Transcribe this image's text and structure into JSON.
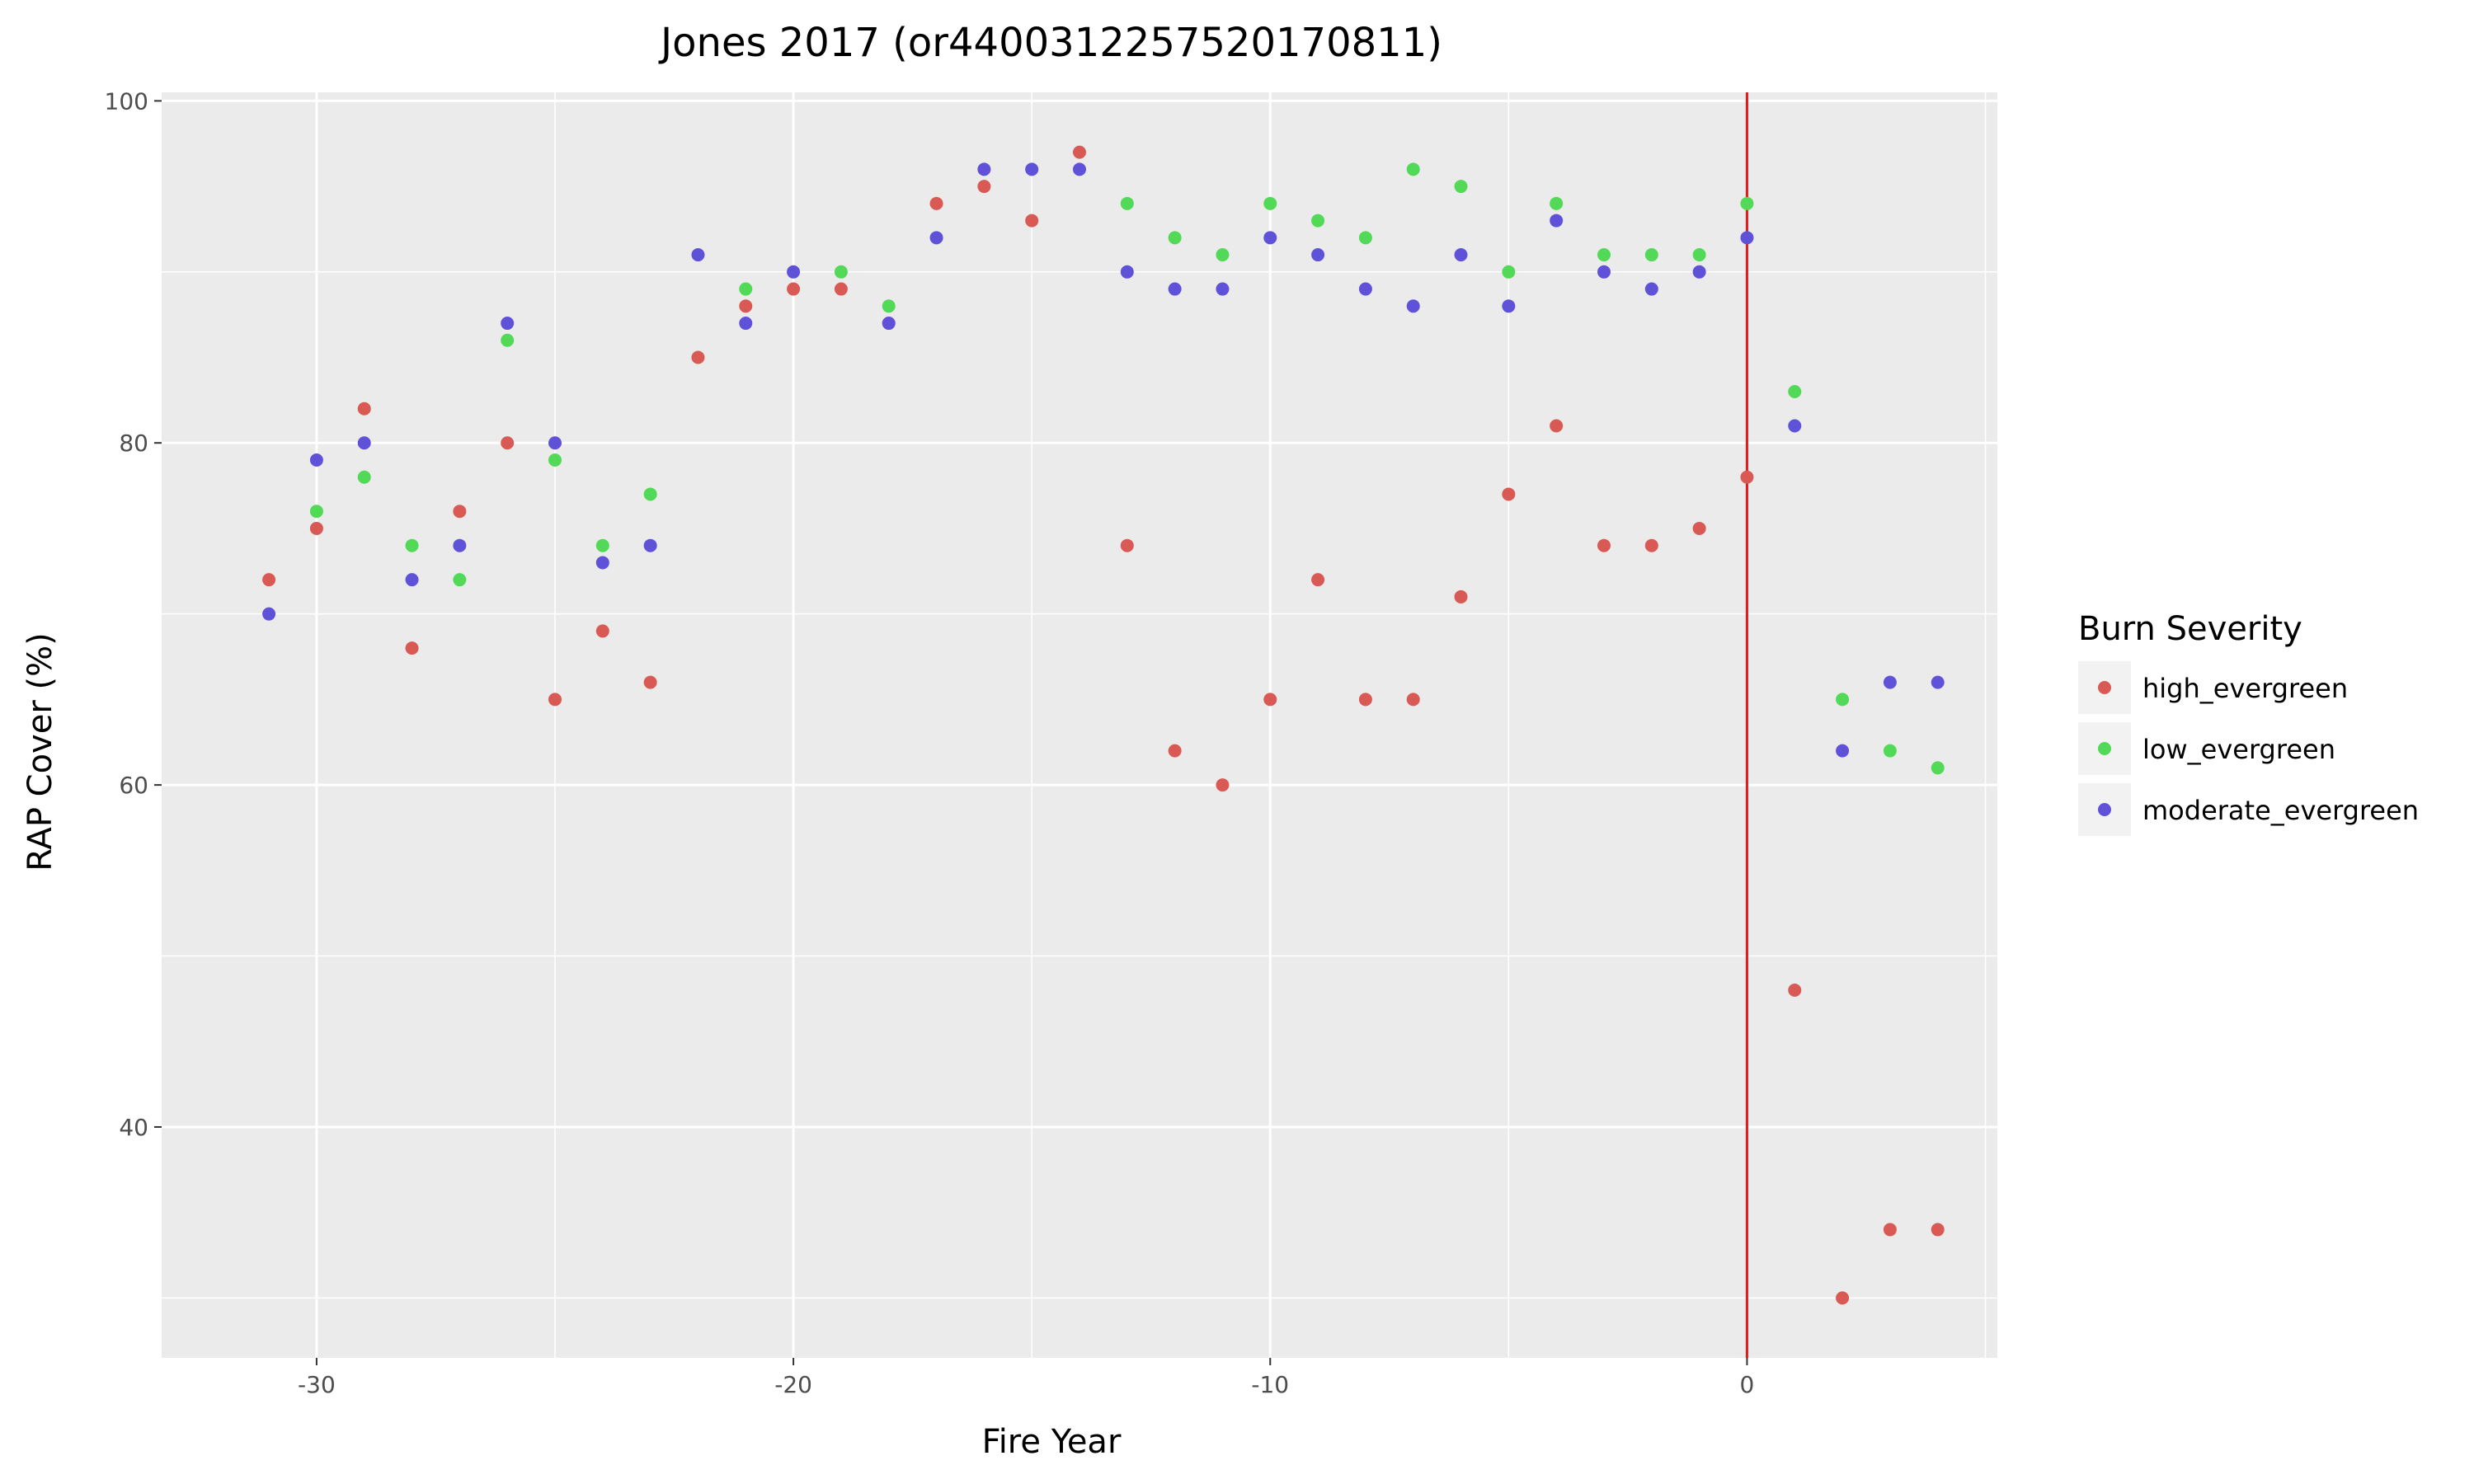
{
  "chart_data": {
    "type": "scatter",
    "title": "Jones 2017 (or4400312257520170811)",
    "xlabel": "Fire Year",
    "ylabel": "RAP Cover (%)",
    "xlim": [
      -33.25,
      5.25
    ],
    "ylim": [
      26.5,
      100.5
    ],
    "x_ticks": [
      -30,
      -20,
      -10,
      0
    ],
    "y_ticks": [
      40,
      60,
      80,
      100
    ],
    "grid": true,
    "reference_line": {
      "x": 0,
      "color": "#e41a1c"
    },
    "legend": {
      "title": "Burn Severity",
      "position": "right"
    },
    "series": [
      {
        "name": "high_evergreen",
        "color": "#d95a54",
        "x": [
          -31,
          -30,
          -29,
          -28,
          -27,
          -26,
          -25,
          -24,
          -23,
          -22,
          -21,
          -20,
          -19,
          -18,
          -17,
          -16,
          -15,
          -14,
          -13,
          -12,
          -11,
          -10,
          -9,
          -8,
          -7,
          -6,
          -5,
          -4,
          -3,
          -2,
          -1,
          0,
          1,
          2,
          3,
          4
        ],
        "y": [
          72,
          75,
          82,
          68,
          76,
          80,
          65,
          69,
          66,
          85,
          88,
          89,
          89,
          87,
          94,
          95,
          93,
          97,
          74,
          62,
          60,
          65,
          72,
          65,
          65,
          71,
          77,
          81,
          74,
          74,
          75,
          78,
          48,
          30,
          34,
          34
        ]
      },
      {
        "name": "low_evergreen",
        "color": "#52d957",
        "x": [
          -30,
          -29,
          -28,
          -27,
          -26,
          -25,
          -24,
          -23,
          -21,
          -19,
          -18,
          -13,
          -12,
          -11,
          -10,
          -9,
          -8,
          -7,
          -6,
          -5,
          -4,
          -3,
          -2,
          -1,
          0,
          1,
          2,
          3,
          4
        ],
        "y": [
          76,
          78,
          74,
          72,
          86,
          79,
          74,
          77,
          89,
          90,
          88,
          94,
          92,
          91,
          94,
          93,
          92,
          96,
          95,
          90,
          94,
          91,
          91,
          91,
          94,
          83,
          65,
          62,
          61
        ]
      },
      {
        "name": "moderate_evergreen",
        "color": "#5f52d9",
        "x": [
          -31,
          -30,
          -29,
          -28,
          -27,
          -26,
          -25,
          -24,
          -23,
          -22,
          -21,
          -20,
          -18,
          -17,
          -16,
          -15,
          -14,
          -13,
          -12,
          -11,
          -10,
          -9,
          -8,
          -7,
          -6,
          -5,
          -4,
          -3,
          -2,
          -1,
          0,
          1,
          2,
          3,
          4
        ],
        "y": [
          70,
          79,
          80,
          72,
          74,
          87,
          80,
          73,
          74,
          91,
          87,
          90,
          87,
          92,
          96,
          96,
          96,
          90,
          89,
          89,
          92,
          91,
          89,
          88,
          91,
          88,
          93,
          90,
          89,
          90,
          92,
          81,
          62,
          66,
          66
        ]
      }
    ]
  }
}
